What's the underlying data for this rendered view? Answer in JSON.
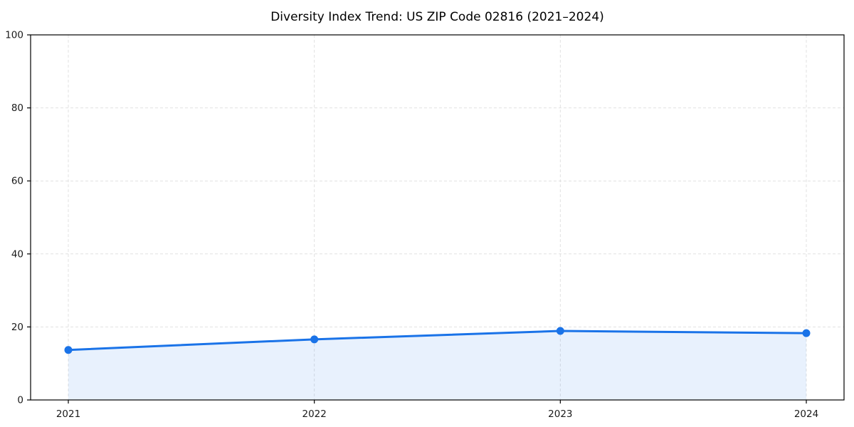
{
  "chart_data": {
    "type": "line",
    "title": "Diversity Index Trend: US ZIP Code 02816 (2021–2024)",
    "categories": [
      "2021",
      "2022",
      "2023",
      "2024"
    ],
    "series": [
      {
        "name": "Diversity Index",
        "values": [
          13.7,
          16.6,
          18.9,
          18.3
        ]
      }
    ],
    "xlabel": "",
    "ylabel": "",
    "ylim": [
      0,
      100
    ],
    "yticks": [
      0,
      20,
      40,
      60,
      80,
      100
    ],
    "grid": "dashed, horizontal and vertical",
    "legend": "none",
    "area_fill": true,
    "marker": "circle",
    "colors": {
      "line": "#1a73e8",
      "fill": "#1a73e8",
      "fill_opacity": 0.1,
      "grid": "#dcdcdc",
      "axis": "#000000",
      "tick_label": "#1a1a1a",
      "title": "#000000",
      "background": "#ffffff"
    }
  }
}
